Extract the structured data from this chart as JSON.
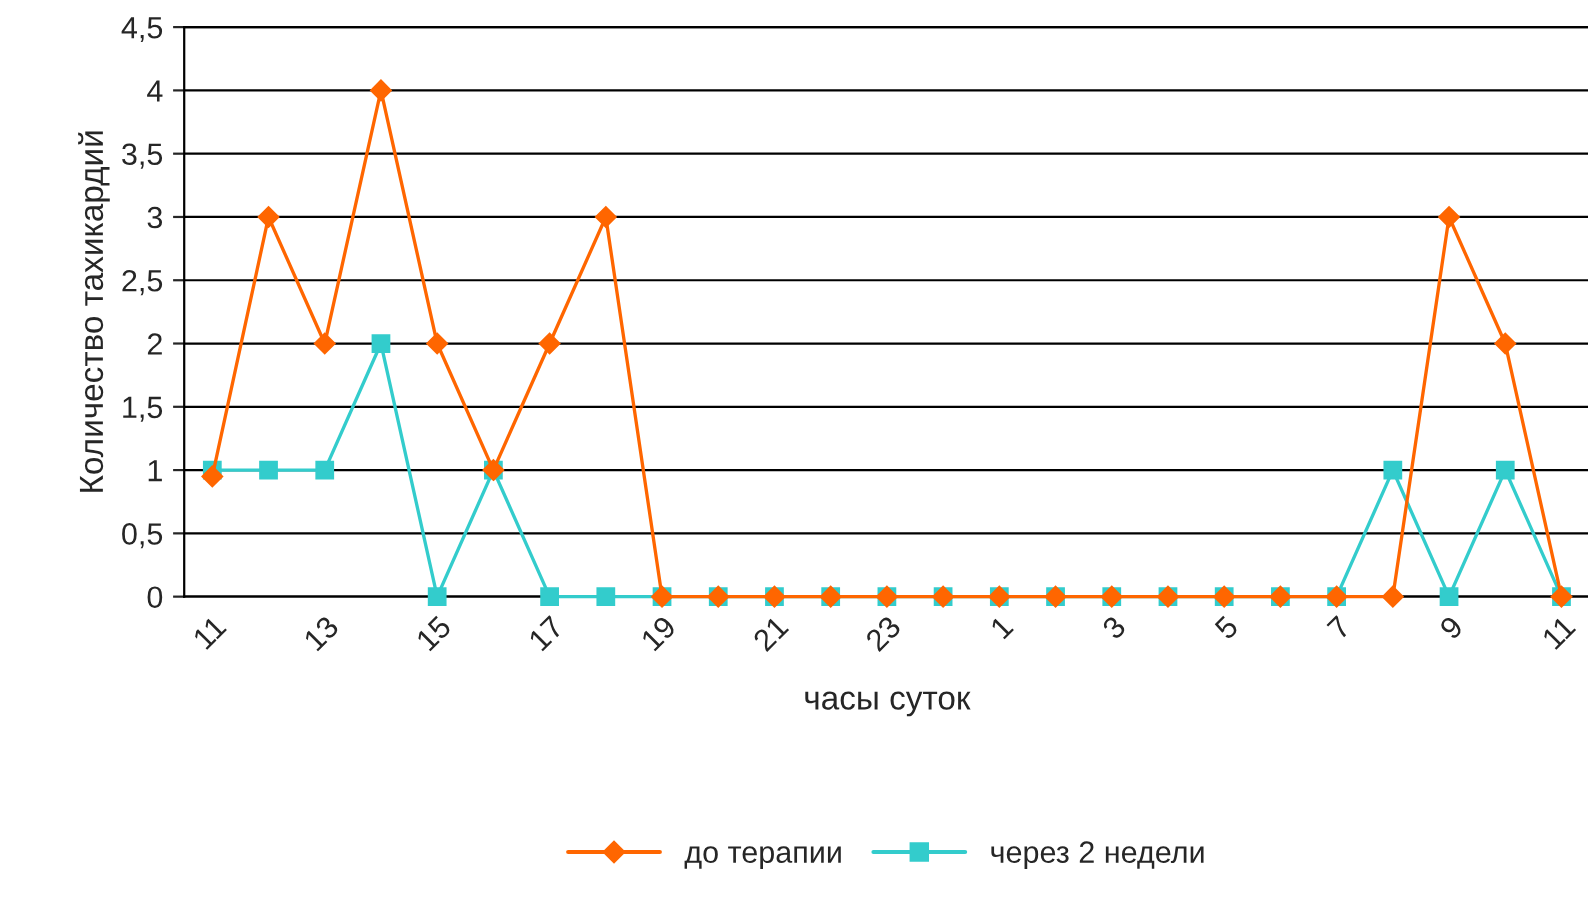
{
  "chart_data": {
    "type": "line",
    "xlabel": "часы суток",
    "ylabel": "Количество тахикардий",
    "categories": [
      "11",
      null,
      "13",
      null,
      "15",
      null,
      "17",
      null,
      "19",
      null,
      "21",
      null,
      "23",
      null,
      "1",
      null,
      "3",
      null,
      "5",
      null,
      "7",
      null,
      "9",
      null,
      "11"
    ],
    "series": [
      {
        "name": "до терапии",
        "color": "#ff6600",
        "marker": "diamond",
        "values": [
          0.95,
          3,
          2,
          4,
          2,
          1,
          2,
          3,
          0,
          0,
          0,
          0,
          0,
          0,
          0,
          0,
          0,
          0,
          0,
          0,
          0,
          0,
          3,
          2,
          0
        ]
      },
      {
        "name": "через 2 недели",
        "color": "#33cccc",
        "marker": "square",
        "values": [
          1,
          1,
          1,
          2,
          0,
          1,
          0,
          0,
          0,
          0,
          0,
          0,
          0,
          0,
          0,
          0,
          0,
          0,
          0,
          0,
          0,
          1,
          0,
          1,
          0
        ]
      }
    ],
    "ylim": [
      0,
      4.5
    ],
    "yticks": [
      0,
      {
        "value": 0.5,
        "label": "0,5"
      },
      1,
      {
        "value": 1.5,
        "label": "1,5"
      },
      2,
      {
        "value": 2.5,
        "label": "2,5"
      },
      3,
      {
        "value": 3.5,
        "label": "3,5"
      },
      4,
      {
        "value": 4.5,
        "label": "4,5"
      }
    ],
    "grid": "y",
    "legend": "bottom",
    "line_style": "solid"
  }
}
